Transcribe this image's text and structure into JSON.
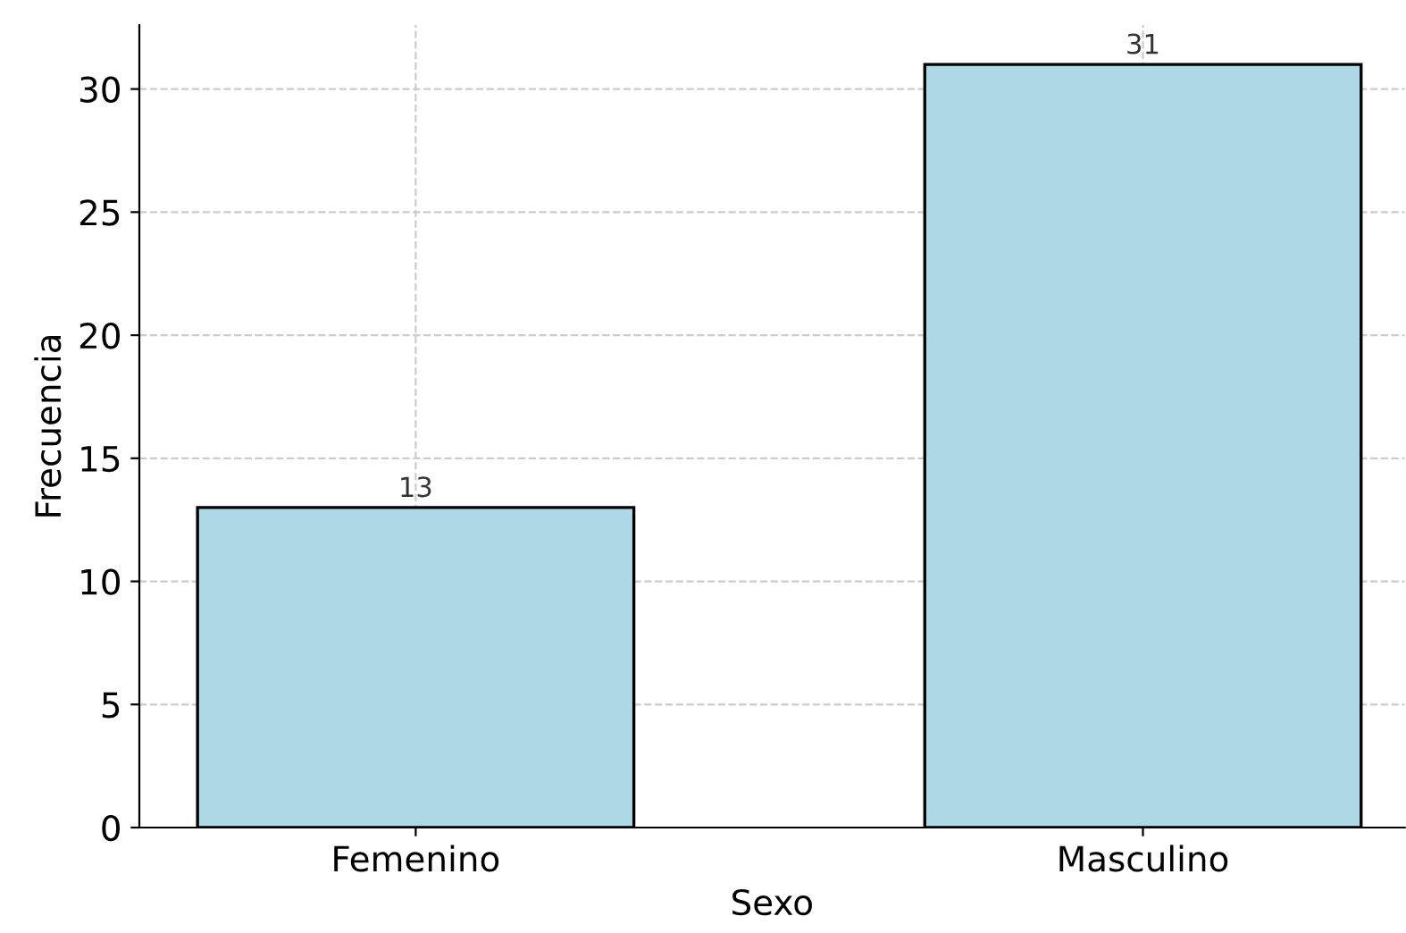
{
  "chart_data": {
    "type": "bar",
    "xlabel": "Sexo",
    "ylabel": "Frecuencia",
    "categories": [
      "Femenino",
      "Masculino"
    ],
    "values": [
      13,
      31
    ],
    "color": "#add8e6",
    "ylim": [
      0,
      32.6
    ],
    "yticks": [
      0,
      5,
      10,
      15,
      20,
      25,
      30
    ],
    "grid": true,
    "data_labels": true
  }
}
